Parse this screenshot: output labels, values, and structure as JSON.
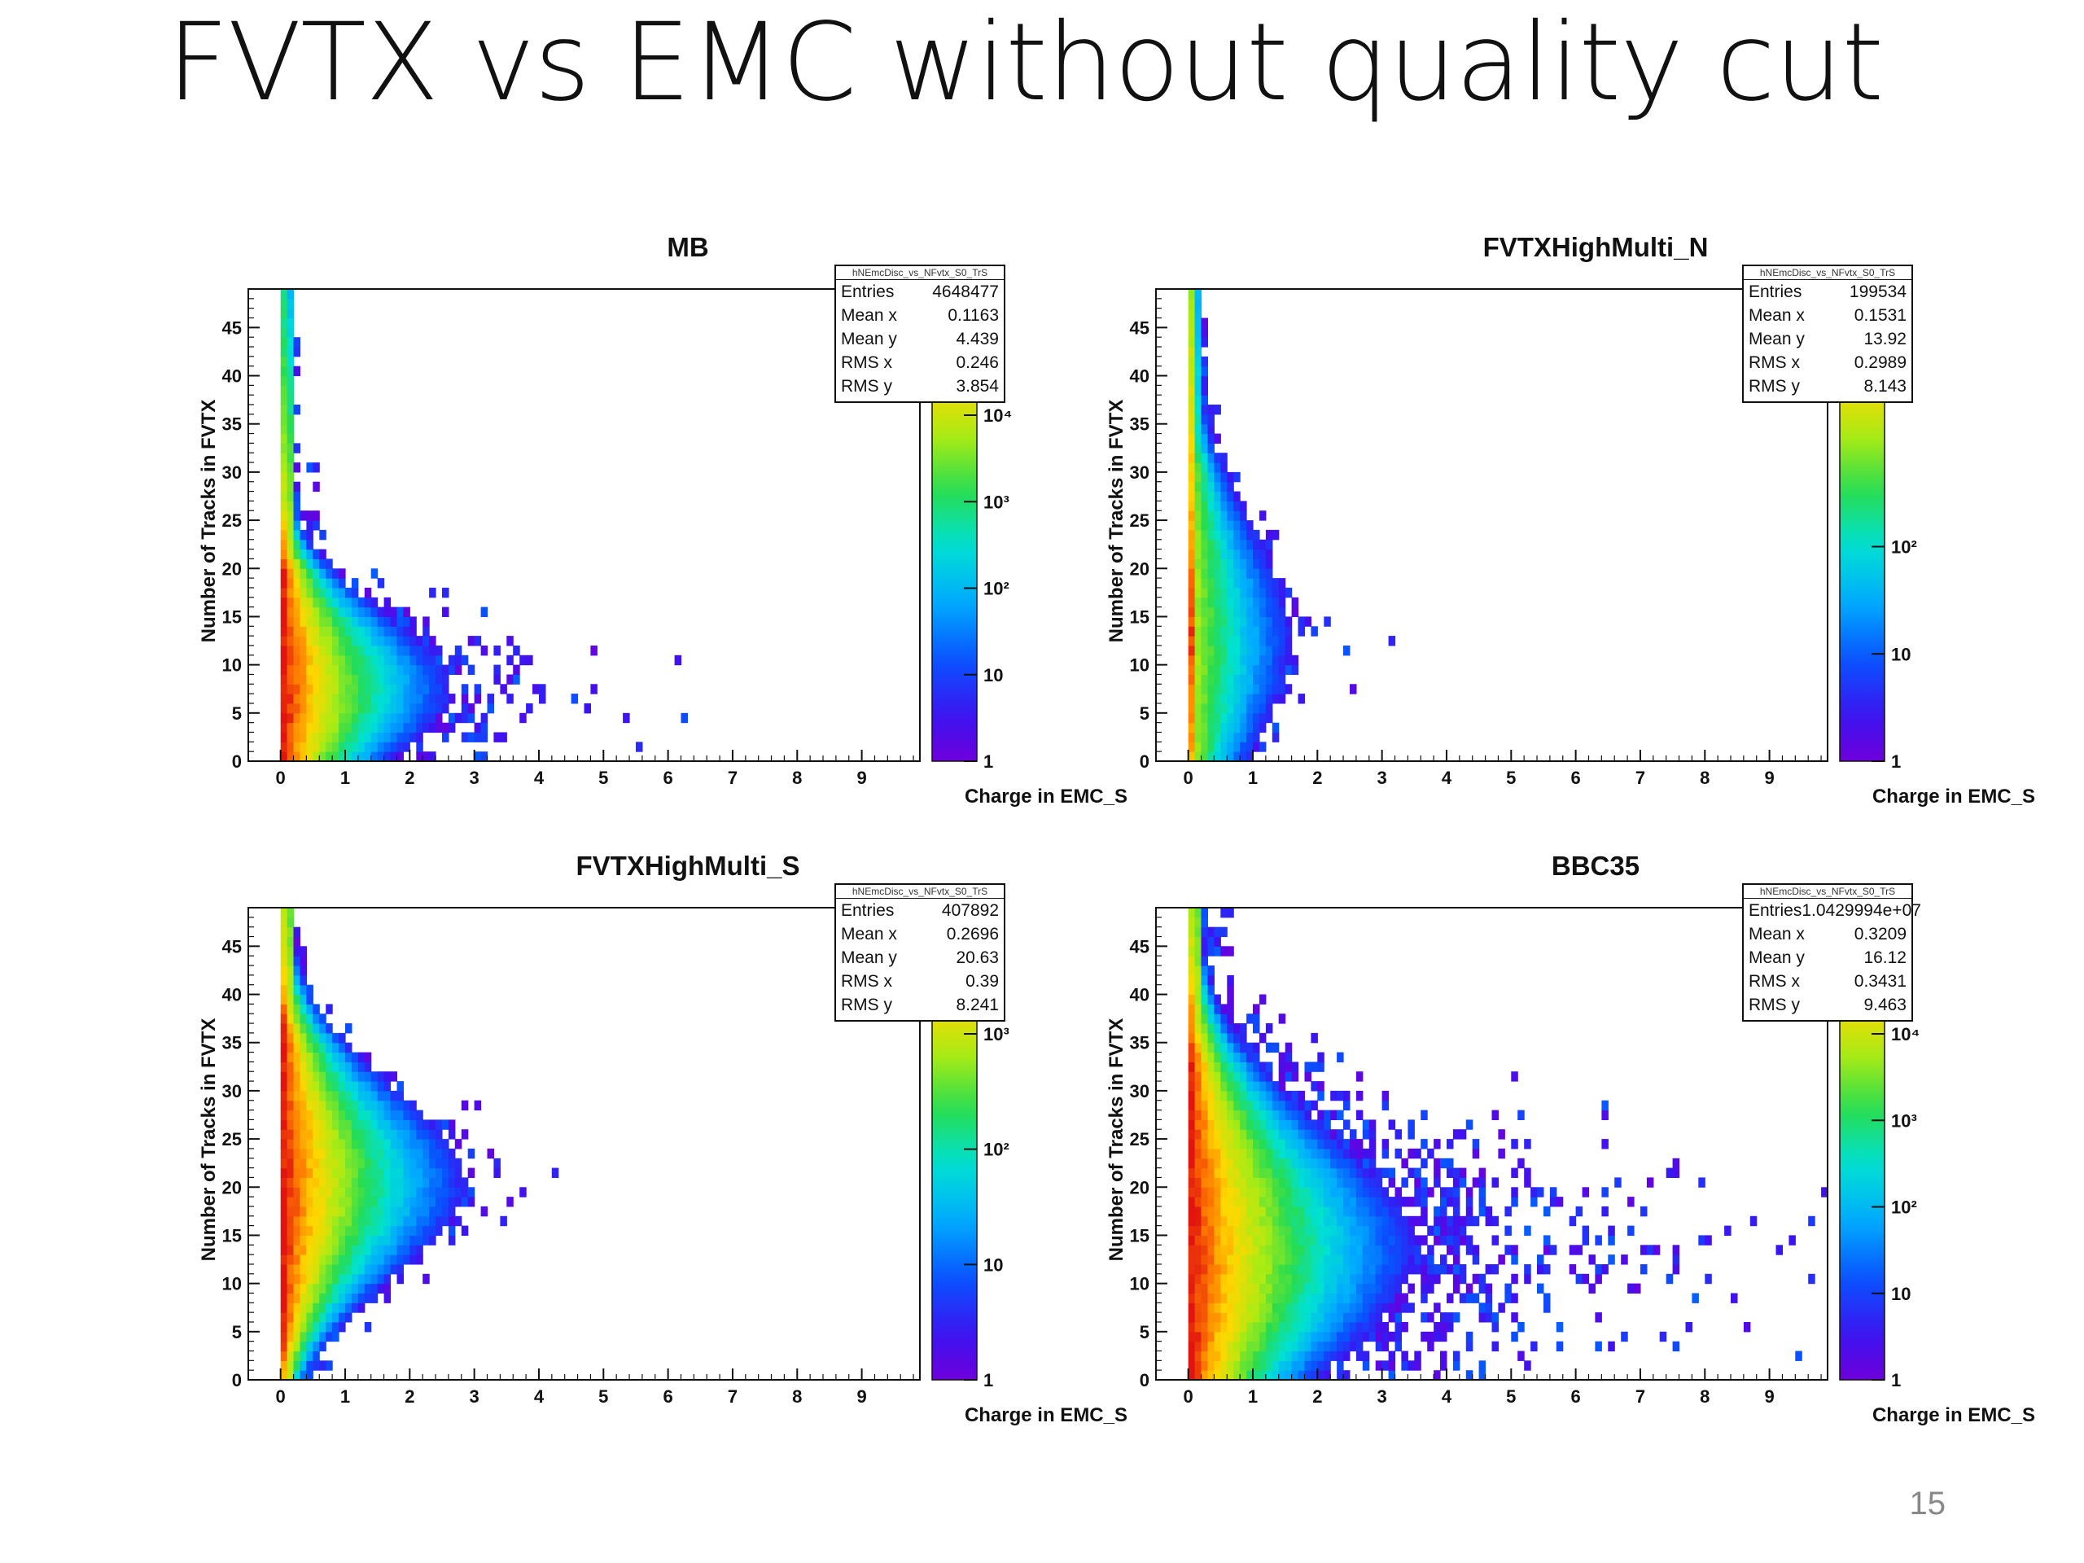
{
  "slide": {
    "title": "FVTX vs EMC without quality cut",
    "page_number": "15"
  },
  "chart_data": [
    {
      "type": "heatmap",
      "title": "MB",
      "xlabel": "Charge in EMC_S",
      "ylabel": "Number of Tracks in FVTX",
      "xlim": [
        -0.5,
        9.9
      ],
      "ylim": [
        0,
        49
      ],
      "x_ticks": [
        0,
        1,
        2,
        3,
        4,
        5,
        6,
        7,
        8,
        9
      ],
      "y_ticks": [
        0,
        5,
        10,
        15,
        20,
        25,
        30,
        35,
        40,
        45
      ],
      "colorbar_labels": [
        "1",
        "10",
        "10²",
        "10³",
        "10⁴"
      ],
      "log_z": true,
      "stats": {
        "header": "hNEmcDisc_vs_NFvtx_S0_TrS",
        "entries": "4648477",
        "mean_x": "0.1163",
        "mean_y": "4.439",
        "rms_x": "0.246",
        "rms_y": "3.854"
      },
      "shape": {
        "peak_y": 7,
        "sigma_y": 7.5,
        "x_extent": 2.2,
        "tail": 0.9,
        "core": 1.0
      }
    },
    {
      "type": "heatmap",
      "title": "FVTXHighMulti_N",
      "xlabel": "Charge in EMC_S",
      "ylabel": "Number of Tracks in FVTX",
      "xlim": [
        -0.5,
        9.9
      ],
      "ylim": [
        0,
        49
      ],
      "x_ticks": [
        0,
        1,
        2,
        3,
        4,
        5,
        6,
        7,
        8,
        9
      ],
      "y_ticks": [
        0,
        5,
        10,
        15,
        20,
        25,
        30,
        35,
        40,
        45
      ],
      "colorbar_labels": [
        "1",
        "10",
        "10²"
      ],
      "log_z": true,
      "stats": {
        "header": "hNEmcDisc_vs_NFvtx_S0_TrS",
        "entries": "199534",
        "mean_x": "0.1531",
        "mean_y": "13.92",
        "rms_x": "0.2989",
        "rms_y": "8.143"
      },
      "shape": {
        "peak_y": 12,
        "sigma_y": 11,
        "x_extent": 1.3,
        "tail": 0.35,
        "core": 0.75
      }
    },
    {
      "type": "heatmap",
      "title": "FVTXHighMulti_S",
      "xlabel": "Charge in EMC_S",
      "ylabel": "Number of Tracks in FVTX",
      "xlim": [
        -0.5,
        9.9
      ],
      "ylim": [
        0,
        49
      ],
      "x_ticks": [
        0,
        1,
        2,
        3,
        4,
        5,
        6,
        7,
        8,
        9
      ],
      "y_ticks": [
        0,
        5,
        10,
        15,
        20,
        25,
        30,
        35,
        40,
        45
      ],
      "colorbar_labels": [
        "1",
        "10",
        "10²",
        "10³"
      ],
      "log_z": true,
      "stats": {
        "header": "hNEmcDisc_vs_NFvtx_S0_TrS",
        "entries": "407892",
        "mean_x": "0.2696",
        "mean_y": "20.63",
        "rms_x": "0.39",
        "rms_y": "8.241"
      },
      "shape": {
        "peak_y": 20,
        "sigma_y": 9.5,
        "x_extent": 2.4,
        "tail": 0.35,
        "core": 1.0
      }
    },
    {
      "type": "heatmap",
      "title": "BBC35",
      "xlabel": "Charge in EMC_S",
      "ylabel": "Number of Tracks in FVTX",
      "xlim": [
        -0.5,
        9.9
      ],
      "ylim": [
        0,
        49
      ],
      "x_ticks": [
        0,
        1,
        2,
        3,
        4,
        5,
        6,
        7,
        8,
        9
      ],
      "y_ticks": [
        0,
        5,
        10,
        15,
        20,
        25,
        30,
        35,
        40,
        45
      ],
      "colorbar_labels": [
        "1",
        "10",
        "10²",
        "10³",
        "10⁴"
      ],
      "log_z": true,
      "stats": {
        "header": "hNEmcDisc_vs_NFvtx_S0_TrS",
        "entries": "1.0429994e+07",
        "mean_x": "0.3209",
        "mean_y": "16.12",
        "rms_x": "0.3431",
        "rms_y": "9.463"
      },
      "shape": {
        "peak_y": 13,
        "sigma_y": 12,
        "x_extent": 3.0,
        "tail": 1.6,
        "core": 1.0
      }
    }
  ]
}
